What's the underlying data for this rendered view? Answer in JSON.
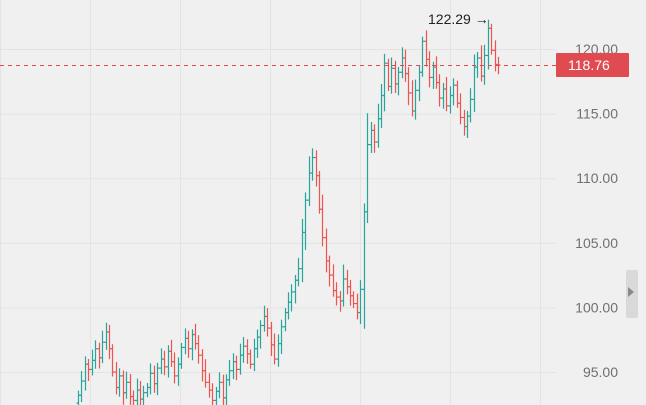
{
  "chart_data": {
    "type": "ohlc",
    "title": "",
    "xlabel": "",
    "ylabel": "",
    "ylim": [
      92.6,
      123.3
    ],
    "y_ticks": [
      "95.00",
      "100.00",
      "105.00",
      "110.00",
      "115.00",
      "120.00"
    ],
    "grid": true,
    "current_price": {
      "label": "118.76",
      "value": 118.76
    },
    "high_annotation": {
      "label": "122.29 →",
      "value": 122.29
    },
    "colors": {
      "up": "#26a69a",
      "down": "#ef5350",
      "price_line": "#e04b52",
      "price_badge": "#e04b52",
      "grid": "#e3e3e3",
      "axis_text": "#707070"
    },
    "closes": [
      93.2,
      94.3,
      95.6,
      95.2,
      95.9,
      96.8,
      96.1,
      97.3,
      98.1,
      96.8,
      95.0,
      93.8,
      94.7,
      93.4,
      94.2,
      93.1,
      92.8,
      93.6,
      92.9,
      93.4,
      93.8,
      94.9,
      94.1,
      95.3,
      96.0,
      95.4,
      96.6,
      95.8,
      94.7,
      95.6,
      96.9,
      97.6,
      96.8,
      97.9,
      97.2,
      96.3,
      95.1,
      94.2,
      93.6,
      92.8,
      93.5,
      94.2,
      93.0,
      94.4,
      95.1,
      95.8,
      95.2,
      96.3,
      97.0,
      96.4,
      95.6,
      96.8,
      97.7,
      98.6,
      99.3,
      98.4,
      97.1,
      96.0,
      97.2,
      98.5,
      99.6,
      100.4,
      101.2,
      102.1,
      103.0,
      105.8,
      108.3,
      110.4,
      111.6,
      110.2,
      107.6,
      105.4,
      103.6,
      102.5,
      101.3,
      100.8,
      100.5,
      102.2,
      101.6,
      100.9,
      100.3,
      99.6,
      101.4,
      107.4,
      112.6,
      113.7,
      112.8,
      114.6,
      116.4,
      118.9,
      117.1,
      118.5,
      117.3,
      118.2,
      119.3,
      118.1,
      116.6,
      115.2,
      116.8,
      118.2,
      120.6,
      119.2,
      117.8,
      118.6,
      117.4,
      116.2,
      116.9,
      115.6,
      116.4,
      117.2,
      115.8,
      114.7,
      114.0,
      114.8,
      116.1,
      118.6,
      119.3,
      117.9,
      119.5,
      121.6,
      119.9,
      118.8,
      118.76
    ]
  }
}
